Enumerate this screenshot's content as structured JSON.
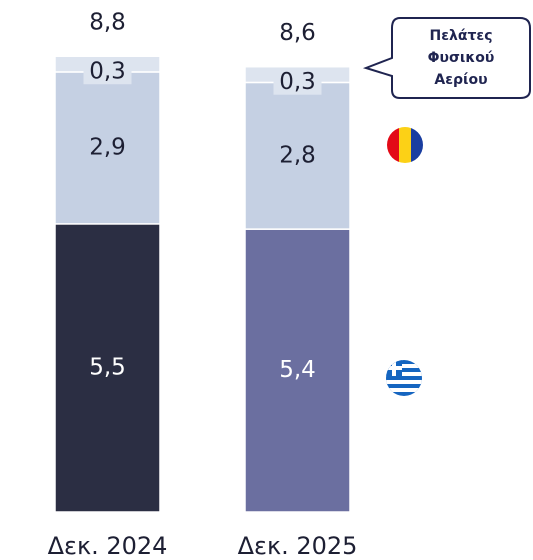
{
  "chart_data": {
    "type": "stacked_bar",
    "categories": [
      "Δεκ. 2024",
      "Δεκ. 2025"
    ],
    "series": [
      {
        "colors": [
          "#2b2e43",
          "#6b6fa0"
        ],
        "values": [
          5.5,
          5.4
        ],
        "value_labels": [
          "5,5",
          "5,4"
        ]
      },
      {
        "colors": [
          "#c5d0e3",
          "#c5d0e3"
        ],
        "values": [
          2.9,
          2.8
        ],
        "value_labels": [
          "2,9",
          "2,8"
        ]
      },
      {
        "colors": [
          "#dde4ef",
          "#dde4ef"
        ],
        "values": [
          0.3,
          0.3
        ],
        "value_labels": [
          "0,3",
          "0,3"
        ]
      }
    ],
    "totals": [
      8.8,
      8.6
    ],
    "total_labels": [
      "8,8",
      "8,6"
    ],
    "annotation": [
      "Πελάτες",
      "Φυσικού",
      "Αερίου"
    ]
  }
}
